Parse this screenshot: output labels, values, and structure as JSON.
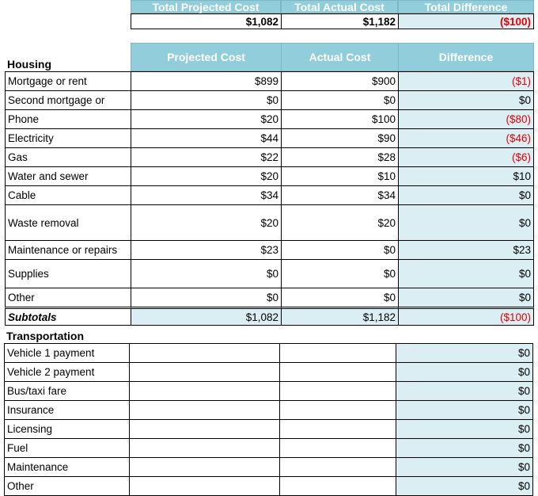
{
  "summary": {
    "headers": [
      "Total Projected Cost",
      "Total Actual Cost",
      "Total Difference"
    ],
    "values": [
      "$1,082",
      "$1,182",
      "($100)"
    ]
  },
  "housing": {
    "title": "Housing",
    "columns": [
      "Projected Cost",
      "Actual Cost",
      "Difference"
    ],
    "rows": [
      {
        "label": "Mortgage or rent",
        "projected": "$899",
        "actual": "$900",
        "difference": "($1)",
        "negative": true
      },
      {
        "label": "Second mortgage or",
        "projected": "$0",
        "actual": "$0",
        "difference": "$0",
        "negative": false
      },
      {
        "label": "Phone",
        "projected": "$20",
        "actual": "$100",
        "difference": "($80)",
        "negative": true
      },
      {
        "label": "Electricity",
        "projected": "$44",
        "actual": "$90",
        "difference": "($46)",
        "negative": true
      },
      {
        "label": "Gas",
        "projected": "$22",
        "actual": "$28",
        "difference": "($6)",
        "negative": true
      },
      {
        "label": "Water and sewer",
        "projected": "$20",
        "actual": "$10",
        "difference": "$10",
        "negative": false
      },
      {
        "label": "Cable",
        "projected": "$34",
        "actual": "$34",
        "difference": "$0",
        "negative": false
      },
      {
        "label": "Waste removal",
        "projected": "$20",
        "actual": "$20",
        "difference": "$0",
        "negative": false
      },
      {
        "label": "Maintenance or repairs",
        "projected": "$23",
        "actual": "$0",
        "difference": "$23",
        "negative": false
      },
      {
        "label": "Supplies",
        "projected": "$0",
        "actual": "$0",
        "difference": "$0",
        "negative": false
      },
      {
        "label": "Other",
        "projected": "$0",
        "actual": "$0",
        "difference": "$0",
        "negative": false
      }
    ],
    "subtotal": {
      "label": "Subtotals",
      "projected": "$1,082",
      "actual": "$1,182",
      "difference": "($100)"
    }
  },
  "transportation": {
    "title": "Transportation",
    "rows": [
      {
        "label": "Vehicle 1 payment",
        "difference": "$0"
      },
      {
        "label": "Vehicle 2 payment",
        "difference": "$0"
      },
      {
        "label": "Bus/taxi fare",
        "difference": "$0"
      },
      {
        "label": "Insurance",
        "difference": "$0"
      },
      {
        "label": "Licensing",
        "difference": "$0"
      },
      {
        "label": "Fuel",
        "difference": "$0"
      },
      {
        "label": "Maintenance",
        "difference": "$0"
      },
      {
        "label": "Other",
        "difference": "$0"
      }
    ]
  },
  "colors": {
    "header_bg": "#92cddc",
    "difference_bg": "#dbeef4",
    "negative_text": "#e00000"
  }
}
